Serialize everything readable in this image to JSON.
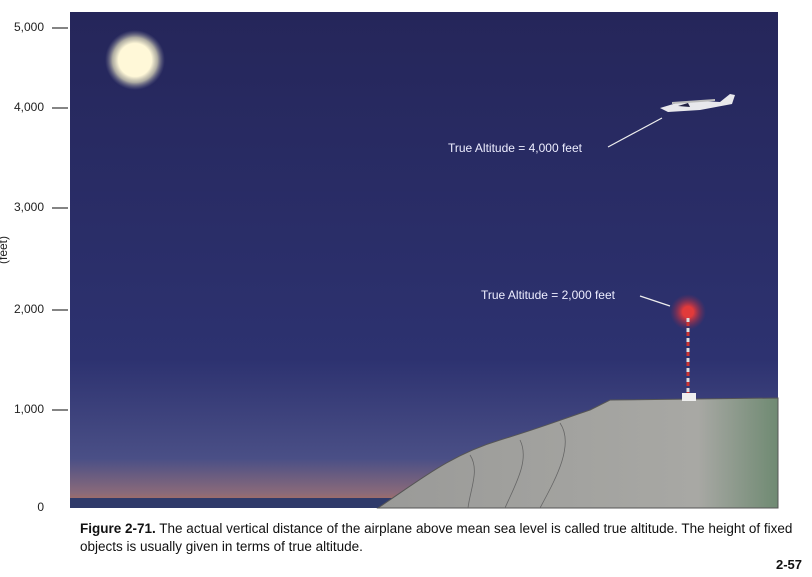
{
  "figure": {
    "axis_label": "(feet)",
    "ticks": [
      "5,000",
      "4,000",
      "3,000",
      "2,000",
      "1,000",
      "0"
    ],
    "annotations": [
      "True Altitude = 4,000 feet",
      "True Altitude = 2,000 feet"
    ],
    "caption_label": "Figure 2-71.",
    "caption_text": "The actual vertical distance of the airplane above mean sea level is called true altitude. The height of fixed objects is usually given in terms of true altitude."
  },
  "page_number": "2-57"
}
